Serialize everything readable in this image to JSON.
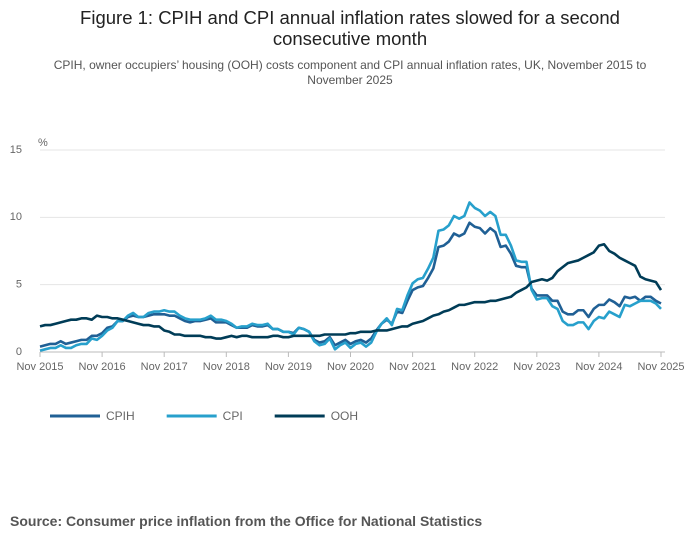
{
  "chart_data": {
    "type": "line",
    "title": "Figure 1: CPIH and CPI annual inflation rates slowed for a second consecutive month",
    "subtitle": "CPIH, owner occupiers’ housing (OOH) costs component and CPI annual inflation rates, UK, November 2015 to November 2025",
    "y_unit": "%",
    "source": "Source: Consumer price inflation from the Office for National Statistics",
    "categories": [
      "Nov 2015",
      null,
      null,
      null,
      null,
      null,
      null,
      null,
      null,
      null,
      null,
      null,
      "Nov 2016",
      null,
      null,
      null,
      null,
      null,
      null,
      null,
      null,
      null,
      null,
      null,
      "Nov 2017",
      null,
      null,
      null,
      null,
      null,
      null,
      null,
      null,
      null,
      null,
      null,
      "Nov 2018",
      null,
      null,
      null,
      null,
      null,
      null,
      null,
      null,
      null,
      null,
      null,
      "Nov 2019",
      null,
      null,
      null,
      null,
      null,
      null,
      null,
      null,
      null,
      null,
      null,
      "Nov 2020",
      null,
      null,
      null,
      null,
      null,
      null,
      null,
      null,
      null,
      null,
      null,
      "Nov 2021",
      null,
      null,
      null,
      null,
      null,
      null,
      null,
      null,
      null,
      null,
      null,
      "Nov 2022",
      null,
      null,
      null,
      null,
      null,
      null,
      null,
      null,
      null,
      null,
      null,
      "Nov 2023",
      null,
      null,
      null,
      null,
      null,
      null,
      null,
      null,
      null,
      null,
      null,
      "Nov 2024",
      null,
      null,
      null,
      null,
      null,
      null,
      null,
      null,
      null,
      null,
      null,
      "Nov 2025"
    ],
    "series": [
      {
        "name": "CPIH",
        "color": "#206095",
        "values": [
          0.4,
          0.5,
          0.6,
          0.6,
          0.8,
          0.6,
          0.7,
          0.8,
          0.9,
          0.9,
          1.2,
          1.2,
          1.4,
          1.8,
          1.9,
          2.3,
          2.3,
          2.6,
          2.7,
          2.6,
          2.6,
          2.7,
          2.8,
          2.8,
          2.8,
          2.7,
          2.7,
          2.5,
          2.3,
          2.2,
          2.3,
          2.3,
          2.4,
          2.5,
          2.2,
          2.2,
          2.2,
          2.0,
          1.8,
          1.8,
          1.8,
          2.0,
          1.9,
          1.9,
          2.0,
          1.7,
          1.7,
          1.5,
          1.5,
          1.4,
          1.8,
          1.7,
          1.5,
          0.9,
          0.7,
          0.8,
          1.1,
          0.5,
          0.7,
          0.9,
          0.6,
          0.8,
          0.9,
          0.7,
          1.0,
          1.6,
          2.1,
          2.4,
          2.1,
          3.0,
          2.9,
          3.8,
          4.6,
          4.8,
          4.9,
          5.5,
          6.2,
          7.8,
          7.9,
          8.2,
          8.8,
          8.6,
          8.8,
          9.6,
          9.3,
          9.2,
          8.8,
          9.2,
          8.9,
          7.8,
          7.9,
          7.3,
          6.4,
          6.3,
          6.3,
          4.7,
          4.2,
          4.2,
          4.2,
          3.8,
          3.8,
          3.0,
          2.8,
          2.8,
          3.1,
          3.1,
          2.6,
          3.2,
          3.5,
          3.5,
          3.9,
          3.7,
          3.4,
          4.1,
          4.0,
          4.1,
          3.8,
          4.1,
          4.1,
          3.8,
          3.6
        ]
      },
      {
        "name": "CPI",
        "color": "#27a0cc",
        "values": [
          0.1,
          0.2,
          0.3,
          0.3,
          0.5,
          0.3,
          0.3,
          0.5,
          0.6,
          0.6,
          1.0,
          0.9,
          1.2,
          1.6,
          1.8,
          2.3,
          2.3,
          2.7,
          2.9,
          2.6,
          2.6,
          2.9,
          3.0,
          3.0,
          3.1,
          3.0,
          3.0,
          2.7,
          2.5,
          2.4,
          2.4,
          2.4,
          2.5,
          2.7,
          2.4,
          2.4,
          2.3,
          2.1,
          1.8,
          1.9,
          1.9,
          2.1,
          2.0,
          2.0,
          2.1,
          1.7,
          1.7,
          1.5,
          1.5,
          1.3,
          1.8,
          1.7,
          1.5,
          0.8,
          0.5,
          0.6,
          1.0,
          0.2,
          0.5,
          0.7,
          0.3,
          0.6,
          0.7,
          0.4,
          0.7,
          1.5,
          2.1,
          2.5,
          2.0,
          3.2,
          3.1,
          4.2,
          5.1,
          5.4,
          5.5,
          6.2,
          7.0,
          9.0,
          9.1,
          9.4,
          10.1,
          9.9,
          10.1,
          11.1,
          10.7,
          10.5,
          10.1,
          10.4,
          10.1,
          8.7,
          8.7,
          7.9,
          6.8,
          6.7,
          6.7,
          4.6,
          3.9,
          4.0,
          4.0,
          3.4,
          3.2,
          2.3,
          2.0,
          2.0,
          2.2,
          2.2,
          1.7,
          2.3,
          2.6,
          2.5,
          3.0,
          2.8,
          2.6,
          3.5,
          3.4,
          3.6,
          3.8,
          3.8,
          3.8,
          3.6,
          3.2
        ]
      },
      {
        "name": "OOH",
        "color": "#003c57",
        "values": [
          1.9,
          2.0,
          2.0,
          2.1,
          2.2,
          2.3,
          2.4,
          2.4,
          2.5,
          2.5,
          2.4,
          2.7,
          2.6,
          2.6,
          2.5,
          2.5,
          2.4,
          2.3,
          2.2,
          2.1,
          2.0,
          2.0,
          1.9,
          1.9,
          1.6,
          1.5,
          1.3,
          1.3,
          1.2,
          1.2,
          1.2,
          1.2,
          1.1,
          1.1,
          1.0,
          1.0,
          1.1,
          1.2,
          1.1,
          1.2,
          1.2,
          1.1,
          1.1,
          1.1,
          1.1,
          1.2,
          1.2,
          1.1,
          1.1,
          1.2,
          1.2,
          1.2,
          1.2,
          1.2,
          1.2,
          1.3,
          1.3,
          1.3,
          1.3,
          1.3,
          1.4,
          1.4,
          1.5,
          1.5,
          1.5,
          1.6,
          1.6,
          1.6,
          1.7,
          1.8,
          1.9,
          1.9,
          2.1,
          2.2,
          2.3,
          2.5,
          2.7,
          2.8,
          3.0,
          3.1,
          3.3,
          3.5,
          3.5,
          3.6,
          3.7,
          3.7,
          3.7,
          3.8,
          3.8,
          3.9,
          4.0,
          4.1,
          4.4,
          4.6,
          4.8,
          5.2,
          5.3,
          5.4,
          5.3,
          5.5,
          6.0,
          6.3,
          6.6,
          6.7,
          6.8,
          7.0,
          7.2,
          7.4,
          7.9,
          8.0,
          7.5,
          7.3,
          7.0,
          6.8,
          6.6,
          6.4,
          5.6,
          5.4,
          5.3,
          5.2,
          4.6
        ]
      }
    ],
    "ylim": [
      0,
      15
    ],
    "yticks": [
      0,
      5,
      10,
      15
    ],
    "grid": true
  }
}
